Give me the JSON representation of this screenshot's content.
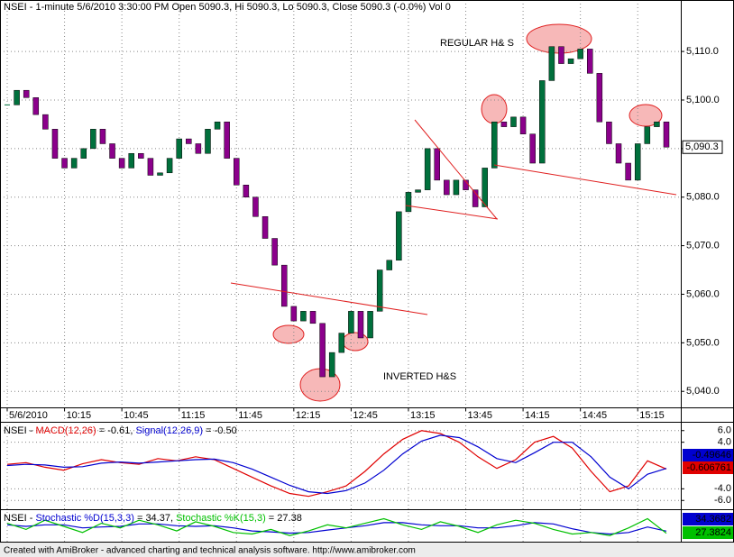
{
  "chart_data": [
    {
      "type": "candlestick",
      "title": "NSEI - 1-minute 5/6/2010 3:30:00 PM Open 5090.3, Hi 5090.3, Lo 5090.3, Close 5090.3 (-0.0%) Vol 0",
      "categories": [
        "5/6/2010",
        null,
        null,
        null,
        null,
        null,
        "10:15",
        null,
        null,
        null,
        null,
        null,
        "10:45",
        null,
        null,
        null,
        null,
        null,
        "11:15",
        null,
        null,
        null,
        null,
        null,
        "11:45",
        null,
        null,
        null,
        null,
        null,
        "12:15",
        null,
        null,
        null,
        null,
        null,
        "12:45",
        null,
        null,
        null,
        null,
        null,
        "13:15",
        null,
        null,
        null,
        null,
        null,
        "13:45",
        null,
        null,
        null,
        null,
        null,
        "14:15",
        null,
        null,
        null,
        null,
        null,
        "14:45",
        null,
        null,
        null,
        null,
        null,
        "15:15",
        null,
        null,
        null
      ],
      "close": [
        5099,
        5102,
        5100.5,
        5097,
        5094,
        5088,
        5086,
        5088,
        5090,
        5094,
        5091,
        5088,
        5086,
        5089,
        5088,
        5084.5,
        5085,
        5088,
        5092,
        5091,
        5089,
        5094,
        5095.5,
        5088,
        5082.5,
        5080,
        5076,
        5071.5,
        5066,
        5057.5,
        5054.5,
        5056.5,
        5054,
        5043,
        5048,
        5052,
        5056.5,
        5051,
        5056.5,
        5065,
        5067,
        5077,
        5081,
        5081.5,
        5090,
        5083.5,
        5080.5,
        5083.5,
        5081.5,
        5078,
        5086,
        5095.5,
        5094.5,
        5096.5,
        5093,
        5087,
        5104,
        5111,
        5107.5,
        5108.5,
        5110.5,
        5105.5,
        5095.5,
        5091,
        5087,
        5083.5,
        5091,
        5094.5,
        5095.5,
        5090.3
      ],
      "up_color": "#00703c",
      "down_color": "#8b008b",
      "ylim": [
        5036.7,
        5120.6
      ],
      "yticks": [
        {
          "value": 5040,
          "label": "5,040.0"
        },
        {
          "value": 5050,
          "label": "5,050.0"
        },
        {
          "value": 5060,
          "label": "5,060.0"
        },
        {
          "value": 5070,
          "label": "5,070.0"
        },
        {
          "value": 5080,
          "label": "5,080.0"
        },
        {
          "value": 5090,
          "label": "5,090.0"
        },
        {
          "value": 5100,
          "label": "5,100.0"
        },
        {
          "value": 5110,
          "label": "5,110.0"
        }
      ],
      "grid": true,
      "last_label": "5,090.3",
      "annotations": [
        {
          "text": "REGULAR H& S",
          "color": "#e02020"
        },
        {
          "text": "INVERTED H&S",
          "color": "#e02020"
        }
      ]
    },
    {
      "type": "line",
      "title": "NSEI - ",
      "equals": " = ",
      "separator": ", ",
      "series": [
        {
          "name": "MACD(12,26)",
          "color": "#e00000",
          "value_label": "-0.61",
          "values": [
            0.2,
            0.5,
            -0.3,
            -0.8,
            0.3,
            1.0,
            0.5,
            0.2,
            1.2,
            0.8,
            1.5,
            1.0,
            -0.5,
            -2.0,
            -3.5,
            -4.8,
            -5.3,
            -4.5,
            -3.5,
            -1.0,
            2.0,
            4.5,
            6.0,
            5.5,
            4.0,
            1.5,
            -0.5,
            1.0,
            4.0,
            5.0,
            3.0,
            -1.0,
            -4.5,
            -3.5,
            0.8,
            -0.606761
          ]
        },
        {
          "name": "Signal(12,26,9)",
          "color": "#0000d0",
          "value_label": "-0.50",
          "values": [
            0.0,
            0.2,
            0.1,
            -0.3,
            -0.2,
            0.4,
            0.6,
            0.4,
            0.6,
            0.8,
            1.0,
            1.1,
            0.5,
            -0.6,
            -2.0,
            -3.4,
            -4.5,
            -4.8,
            -4.3,
            -3.0,
            -0.8,
            2.0,
            4.2,
            5.2,
            4.8,
            3.2,
            1.2,
            0.5,
            2.2,
            4.0,
            4.0,
            1.5,
            -2.0,
            -4.0,
            -1.5,
            -0.49646
          ]
        }
      ],
      "ylim": [
        -7.2,
        7.2
      ],
      "yticks": [
        {
          "value": -6,
          "label": "-6.0"
        },
        {
          "value": -4,
          "label": "-4.0"
        },
        {
          "value": 4,
          "label": "4.0"
        },
        {
          "value": 6,
          "label": "6.0"
        }
      ],
      "grid": true
    },
    {
      "type": "line",
      "title": "NSEI - ",
      "equals": " = ",
      "separator": ", ",
      "series": [
        {
          "name": "Stochastic %D(15,3,3)",
          "color": "#0000d0",
          "value_label": "34.37",
          "box_text": "#ffffff",
          "values": [
            55,
            50,
            55,
            55,
            45,
            48,
            50,
            58,
            58,
            52,
            50,
            52,
            45,
            35,
            32,
            28,
            30,
            38,
            45,
            52,
            62,
            62,
            55,
            52,
            52,
            45,
            45,
            52,
            62,
            58,
            42,
            30,
            25,
            30,
            48,
            34.3682
          ]
        },
        {
          "name": "Stochastic %K(15,3)",
          "color": "#00c000",
          "value_label": "27.38",
          "box_text": "#000000",
          "values": [
            60,
            40,
            70,
            50,
            30,
            60,
            45,
            70,
            55,
            35,
            65,
            50,
            30,
            25,
            40,
            20,
            35,
            55,
            45,
            60,
            75,
            55,
            40,
            65,
            50,
            30,
            55,
            70,
            60,
            40,
            25,
            30,
            20,
            45,
            75,
            27.3824
          ]
        }
      ],
      "ylim": [
        0,
        100
      ],
      "grid": false
    }
  ],
  "footer": "Created with AmiBroker - advanced charting and technical analysis software. http://www.amibroker.com"
}
